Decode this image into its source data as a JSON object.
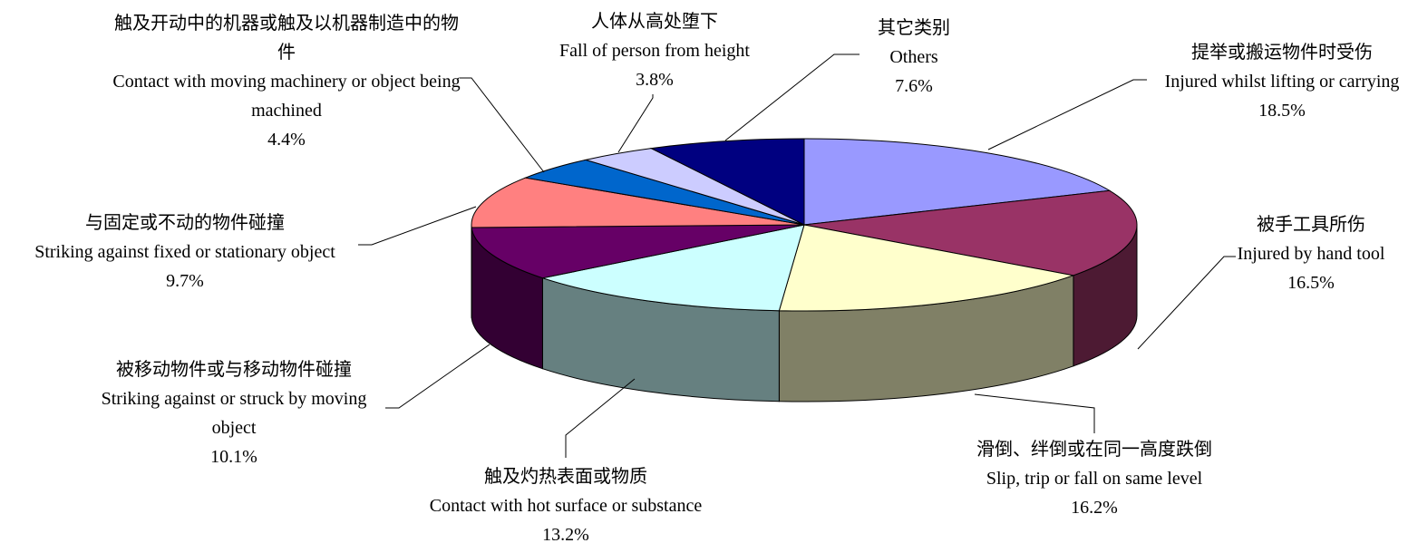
{
  "chart_data": {
    "type": "pie",
    "categories_zh": [
      "提举或搬运物件时受伤",
      "被手工具所伤",
      "滑倒、绊倒或在同一高度跌倒",
      "触及灼热表面或物质",
      "被移动物件或与移动物件碰撞",
      "与固定或不动的物件碰撞",
      "触及开动中的机器或触及以机器制造中的物件",
      "人体从高处堕下",
      "其它类别"
    ],
    "categories": [
      "Injured whilst lifting or carrying",
      "Injured by hand tool",
      "Slip, trip or fall on same level",
      "Contact with hot surface or substance",
      "Striking against or struck by moving object",
      "Striking against fixed or stationary object",
      "Contact with moving machinery or object being machined",
      "Fall of person from height",
      "Others"
    ],
    "values": [
      18.5,
      16.5,
      16.2,
      13.2,
      10.1,
      9.7,
      4.4,
      3.8,
      7.6
    ],
    "value_labels": [
      "18.5%",
      "16.5%",
      "16.2%",
      "13.2%",
      "10.1%",
      "9.7%",
      "4.4%",
      "3.8%",
      "7.6%"
    ],
    "colors": [
      "#9999ff",
      "#993366",
      "#ffffcc",
      "#ccffff",
      "#660066",
      "#ff8080",
      "#0066cc",
      "#ccccff",
      "#000080"
    ]
  }
}
